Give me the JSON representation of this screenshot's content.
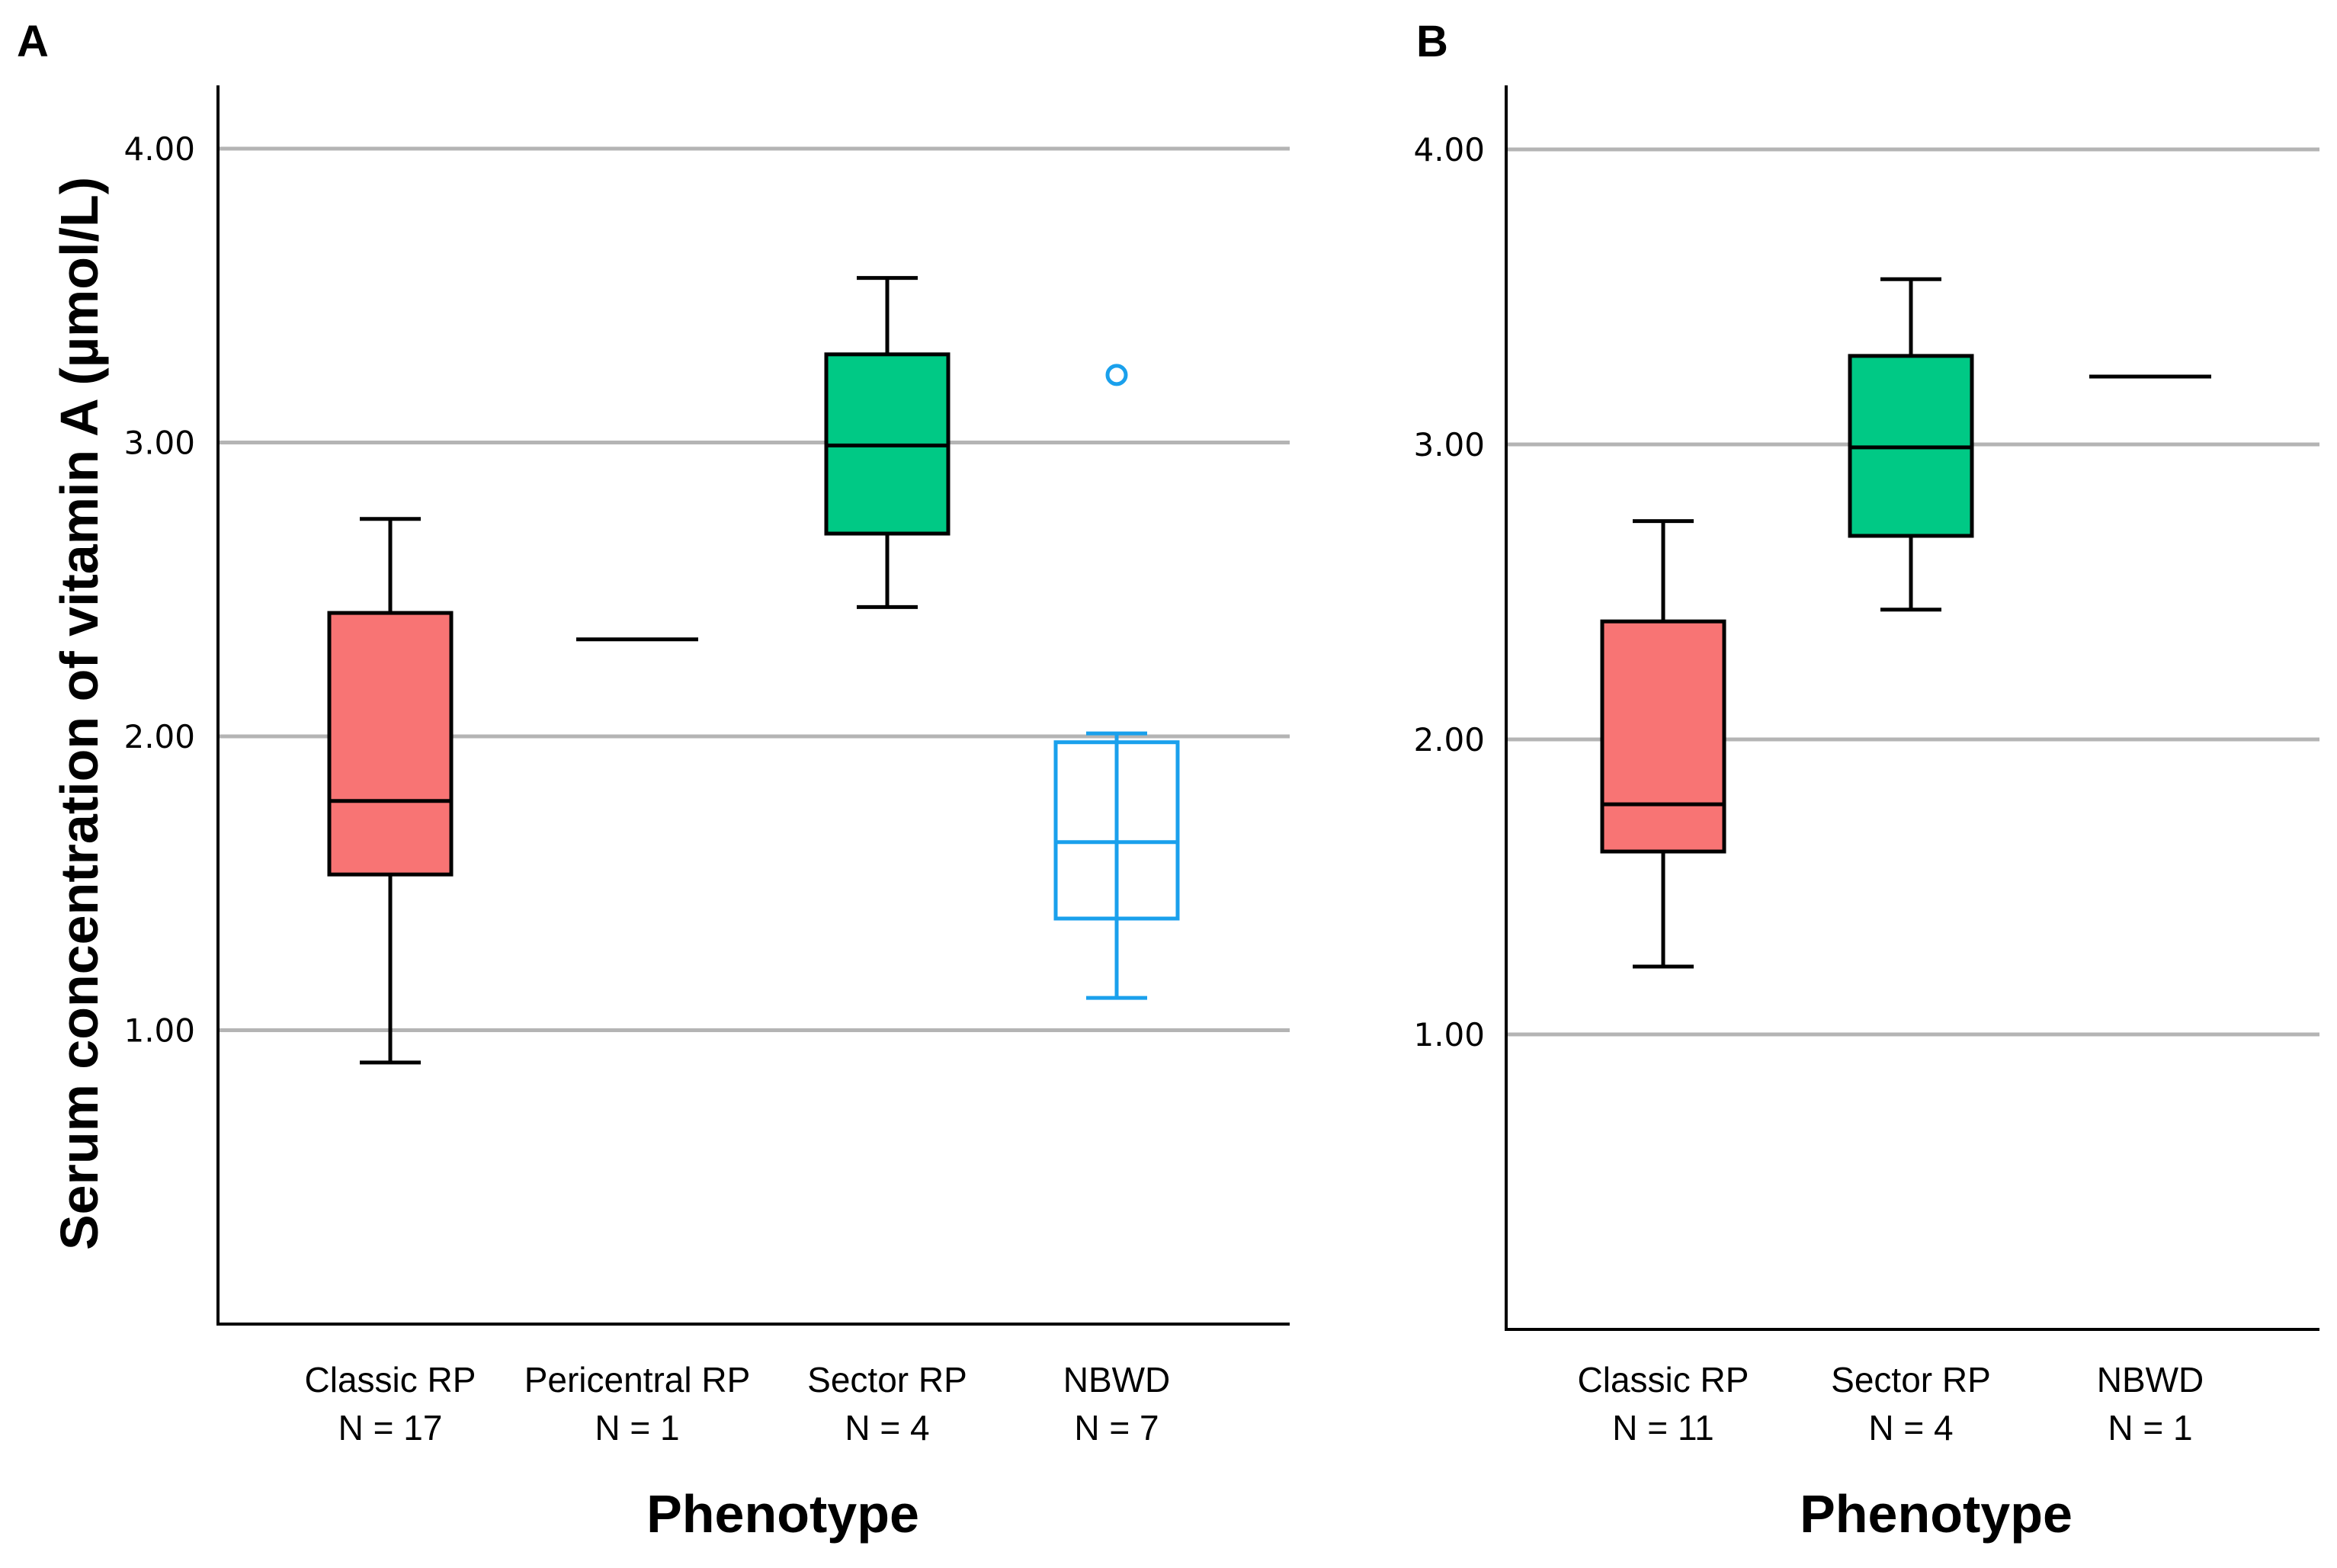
{
  "chart_data": [
    {
      "panel": "A",
      "type": "box",
      "ylabel": "Serum concentration of vitamin A (µmol/L)",
      "xlabel": "Phenotype",
      "ylim": [
        0,
        4.2
      ],
      "yticks": [
        "1.00",
        "2.00",
        "3.00",
        "4.00"
      ],
      "grid": true,
      "categories": [
        {
          "name": "Classic RP",
          "n": "N = 17",
          "color": "#f87474",
          "filled": true,
          "min": 0.89,
          "q1": 1.53,
          "median": 1.78,
          "q3": 2.42,
          "max": 2.74,
          "outliers": []
        },
        {
          "name": "Pericentral RP",
          "n": "N = 1",
          "color": "#000000",
          "filled": false,
          "single": 2.33
        },
        {
          "name": "Sector RP",
          "n": "N = 4",
          "color": "#00c985",
          "filled": true,
          "min": 2.44,
          "q1": 2.69,
          "median": 2.99,
          "q3": 3.3,
          "max": 3.56,
          "outliers": []
        },
        {
          "name": "NBWD",
          "n": "N = 7",
          "color": "#1aa0ec",
          "filled": false,
          "min": 1.11,
          "q1": 1.38,
          "median": 1.64,
          "q3": 1.98,
          "max": 2.01,
          "outliers": [
            3.23
          ]
        }
      ]
    },
    {
      "panel": "B",
      "type": "box",
      "ylabel": "",
      "xlabel": "Phenotype",
      "ylim": [
        0,
        4.2
      ],
      "yticks": [
        "1.00",
        "2.00",
        "3.00",
        "4.00"
      ],
      "grid": true,
      "categories": [
        {
          "name": "Classic RP",
          "n": "N = 11",
          "color": "#f87474",
          "filled": true,
          "min": 1.23,
          "q1": 1.62,
          "median": 1.78,
          "q3": 2.4,
          "max": 2.74,
          "outliers": []
        },
        {
          "name": "Sector RP",
          "n": "N = 4",
          "color": "#00c985",
          "filled": true,
          "min": 2.44,
          "q1": 2.69,
          "median": 2.99,
          "q3": 3.3,
          "max": 3.56,
          "outliers": []
        },
        {
          "name": "NBWD",
          "n": "N = 1",
          "color": "#000000",
          "filled": false,
          "single": 3.23
        }
      ]
    }
  ]
}
